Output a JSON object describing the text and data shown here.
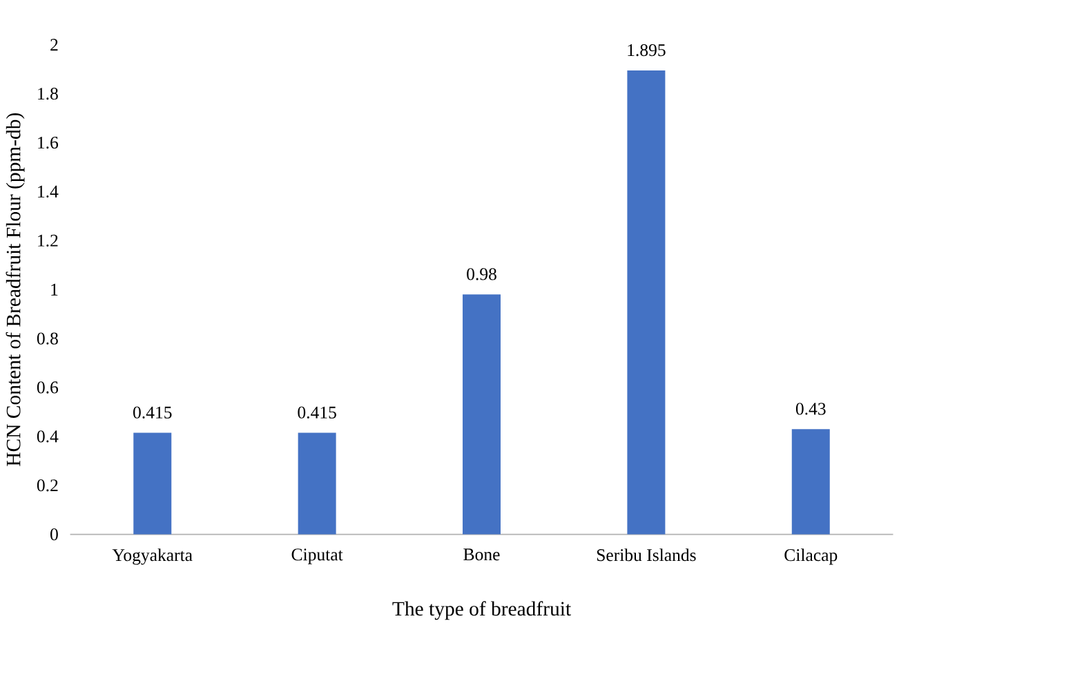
{
  "chart_data": {
    "type": "bar",
    "xlabel": "The type of breadfruit",
    "ylabel": "HCN Content of Breadfruit Flour (ppm-db)",
    "categories": [
      "Yogyakarta",
      "Ciputat",
      "Bone",
      "Seribu Islands",
      "Cilacap"
    ],
    "values": [
      0.415,
      0.415,
      0.98,
      1.895,
      0.43
    ],
    "color": "#4472c4",
    "ylim": [
      0,
      2
    ],
    "yticks": [
      0,
      0.2,
      0.4,
      0.6,
      0.8,
      1,
      1.2,
      1.4,
      1.6,
      1.8,
      2
    ],
    "data_labels": true
  }
}
